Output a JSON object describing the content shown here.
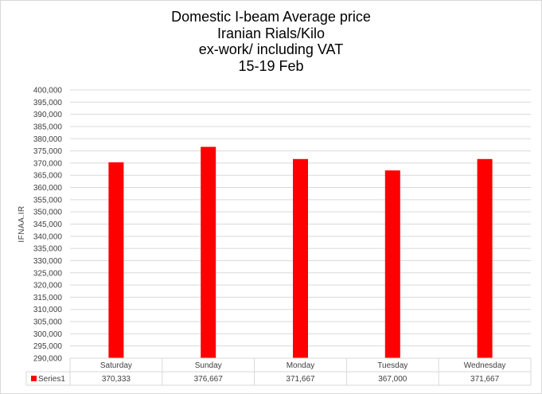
{
  "chart_data": {
    "type": "bar",
    "title_lines": [
      "Domestic I-beam Average price",
      "Iranian Rials/Kilo",
      "ex-work/ including VAT",
      "15-19 Feb"
    ],
    "ylabel": "IFNAA.IR",
    "xlabel": "",
    "ylim": [
      290000,
      400000
    ],
    "ytick_step": 5000,
    "yticks": [
      "290,000",
      "295,000",
      "300,000",
      "305,000",
      "310,000",
      "315,000",
      "320,000",
      "325,000",
      "330,000",
      "335,000",
      "340,000",
      "345,000",
      "350,000",
      "355,000",
      "360,000",
      "365,000",
      "370,000",
      "375,000",
      "380,000",
      "385,000",
      "390,000",
      "395,000",
      "400,000"
    ],
    "categories": [
      "Saturday",
      "Sunday",
      "Monday",
      "Tuesday",
      "Wednesday"
    ],
    "series": [
      {
        "name": "Series1",
        "color": "#ff0000",
        "values": [
          370333,
          376667,
          371667,
          367000,
          371667
        ],
        "labels": [
          "370,333",
          "376,667",
          "371,667",
          "367,000",
          "371,667"
        ]
      }
    ],
    "grid": true,
    "data_table": true
  }
}
